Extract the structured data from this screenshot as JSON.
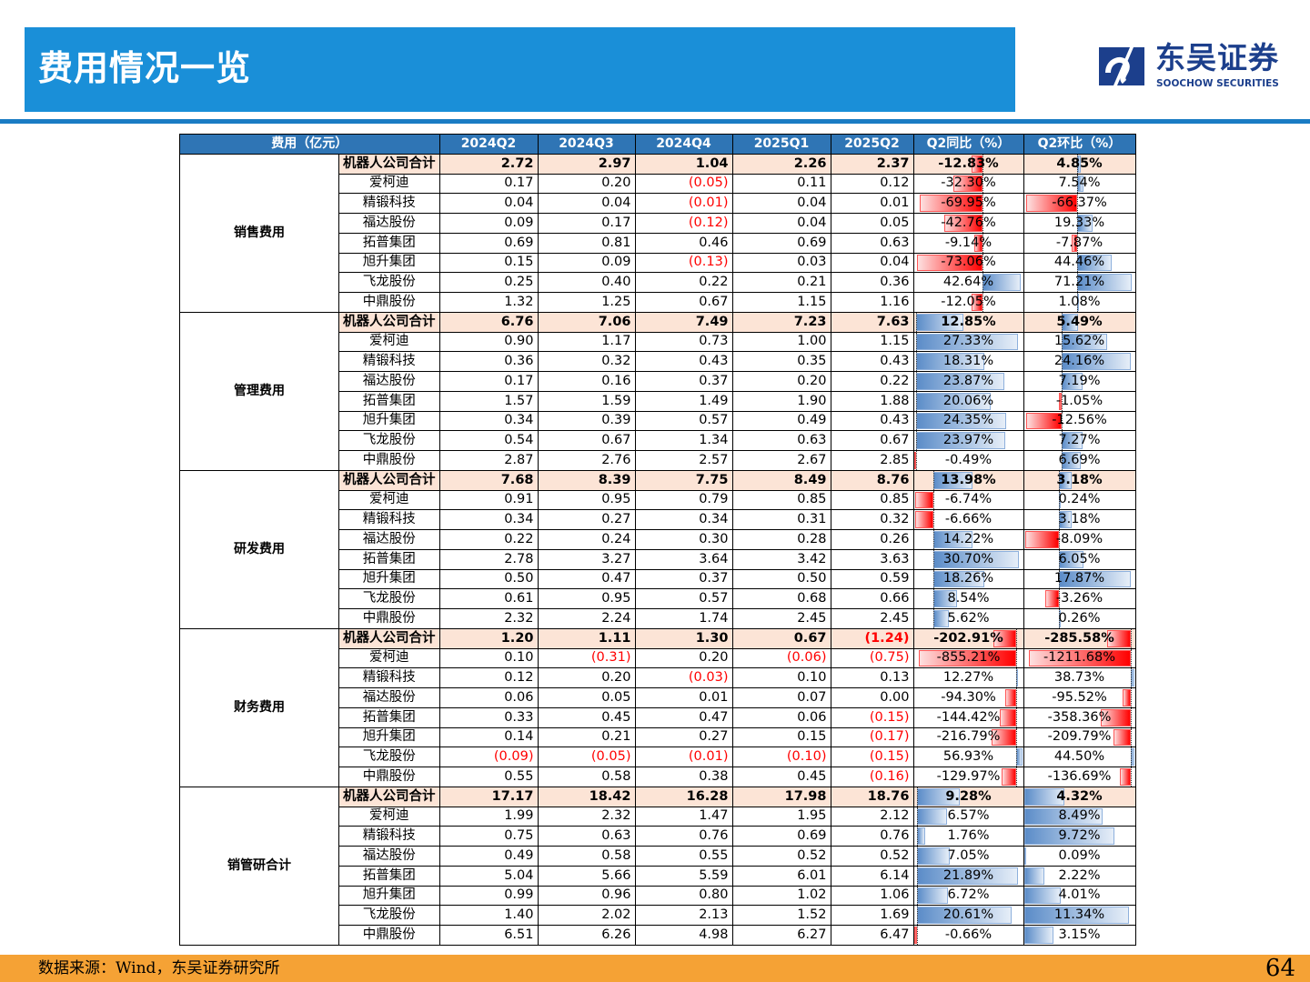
{
  "header": {
    "title": "费用情况一览"
  },
  "logo": {
    "cn": "东吴证券",
    "en": "SOOCHOW SECURITIES"
  },
  "table": {
    "columns": [
      "费用（亿元）",
      "2024Q2",
      "2024Q3",
      "2024Q4",
      "2025Q1",
      "2025Q2",
      "Q2同比（%）",
      "Q2环比（%）"
    ],
    "sections": [
      {
        "category": "销售费用",
        "rows": [
          [
            "机器人公司合计",
            "2.72",
            "2.97",
            "1.04",
            "2.26",
            "2.37",
            "-12.83%",
            "4.85%"
          ],
          [
            "爱柯迪",
            "0.17",
            "0.20",
            "(0.05)",
            "0.11",
            "0.12",
            "-32.30%",
            "7.54%"
          ],
          [
            "精锻科技",
            "0.04",
            "0.04",
            "(0.01)",
            "0.04",
            "0.01",
            "-69.95%",
            "-66.37%"
          ],
          [
            "福达股份",
            "0.09",
            "0.17",
            "(0.12)",
            "0.04",
            "0.05",
            "-42.76%",
            "19.33%"
          ],
          [
            "拓普集团",
            "0.69",
            "0.81",
            "0.46",
            "0.69",
            "0.63",
            "-9.14%",
            "-7.87%"
          ],
          [
            "旭升集团",
            "0.15",
            "0.09",
            "(0.13)",
            "0.03",
            "0.04",
            "-73.06%",
            "44.46%"
          ],
          [
            "飞龙股份",
            "0.25",
            "0.40",
            "0.22",
            "0.21",
            "0.36",
            "42.64%",
            "71.21%"
          ],
          [
            "中鼎股份",
            "1.32",
            "1.25",
            "0.67",
            "1.15",
            "1.16",
            "-12.05%",
            "1.08%"
          ]
        ]
      },
      {
        "category": "管理费用",
        "rows": [
          [
            "机器人公司合计",
            "6.76",
            "7.06",
            "7.49",
            "7.23",
            "7.63",
            "12.85%",
            "5.49%"
          ],
          [
            "爱柯迪",
            "0.90",
            "1.17",
            "0.73",
            "1.00",
            "1.15",
            "27.33%",
            "15.62%"
          ],
          [
            "精锻科技",
            "0.36",
            "0.32",
            "0.43",
            "0.35",
            "0.43",
            "18.31%",
            "24.16%"
          ],
          [
            "福达股份",
            "0.17",
            "0.16",
            "0.37",
            "0.20",
            "0.22",
            "23.87%",
            "7.19%"
          ],
          [
            "拓普集团",
            "1.57",
            "1.59",
            "1.49",
            "1.90",
            "1.88",
            "20.06%",
            "-1.05%"
          ],
          [
            "旭升集团",
            "0.34",
            "0.39",
            "0.57",
            "0.49",
            "0.43",
            "24.35%",
            "-12.56%"
          ],
          [
            "飞龙股份",
            "0.54",
            "0.67",
            "1.34",
            "0.63",
            "0.67",
            "23.97%",
            "7.27%"
          ],
          [
            "中鼎股份",
            "2.87",
            "2.76",
            "2.57",
            "2.67",
            "2.85",
            "-0.49%",
            "6.69%"
          ]
        ]
      },
      {
        "category": "研发费用",
        "rows": [
          [
            "机器人公司合计",
            "7.68",
            "8.39",
            "7.75",
            "8.49",
            "8.76",
            "13.98%",
            "3.18%"
          ],
          [
            "爱柯迪",
            "0.91",
            "0.95",
            "0.79",
            "0.85",
            "0.85",
            "-6.74%",
            "0.24%"
          ],
          [
            "精锻科技",
            "0.34",
            "0.27",
            "0.34",
            "0.31",
            "0.32",
            "-6.66%",
            "3.18%"
          ],
          [
            "福达股份",
            "0.22",
            "0.24",
            "0.30",
            "0.28",
            "0.26",
            "14.22%",
            "-8.09%"
          ],
          [
            "拓普集团",
            "2.78",
            "3.27",
            "3.64",
            "3.42",
            "3.63",
            "30.70%",
            "6.05%"
          ],
          [
            "旭升集团",
            "0.50",
            "0.47",
            "0.37",
            "0.50",
            "0.59",
            "18.26%",
            "17.87%"
          ],
          [
            "飞龙股份",
            "0.61",
            "0.95",
            "0.57",
            "0.68",
            "0.66",
            "8.54%",
            "-3.26%"
          ],
          [
            "中鼎股份",
            "2.32",
            "2.24",
            "1.74",
            "2.45",
            "2.45",
            "5.62%",
            "0.26%"
          ]
        ]
      },
      {
        "category": "财务费用",
        "rows": [
          [
            "机器人公司合计",
            "1.20",
            "1.11",
            "1.30",
            "0.67",
            "(1.24)",
            "-202.91%",
            "-285.58%"
          ],
          [
            "爱柯迪",
            "0.10",
            "(0.31)",
            "0.20",
            "(0.06)",
            "(0.75)",
            "-855.21%",
            "-1211.68%"
          ],
          [
            "精锻科技",
            "0.12",
            "0.20",
            "(0.03)",
            "0.10",
            "0.13",
            "12.27%",
            "38.73%"
          ],
          [
            "福达股份",
            "0.06",
            "0.05",
            "0.01",
            "0.07",
            "0.00",
            "-94.30%",
            "-95.52%"
          ],
          [
            "拓普集团",
            "0.33",
            "0.45",
            "0.47",
            "0.06",
            "(0.15)",
            "-144.42%",
            "-358.36%"
          ],
          [
            "旭升集团",
            "0.14",
            "0.21",
            "0.27",
            "0.15",
            "(0.17)",
            "-216.79%",
            "-209.79%"
          ],
          [
            "飞龙股份",
            "(0.09)",
            "(0.05)",
            "(0.01)",
            "(0.10)",
            "(0.15)",
            "56.93%",
            "44.50%"
          ],
          [
            "中鼎股份",
            "0.55",
            "0.58",
            "0.38",
            "0.45",
            "(0.16)",
            "-129.97%",
            "-136.69%"
          ]
        ]
      },
      {
        "category": "销管研合计",
        "rows": [
          [
            "机器人公司合计",
            "17.17",
            "18.42",
            "16.28",
            "17.98",
            "18.76",
            "9.28%",
            "4.32%"
          ],
          [
            "爱柯迪",
            "1.99",
            "2.32",
            "1.47",
            "1.95",
            "2.12",
            "6.57%",
            "8.49%"
          ],
          [
            "精锻科技",
            "0.75",
            "0.63",
            "0.76",
            "0.69",
            "0.76",
            "1.76%",
            "9.72%"
          ],
          [
            "福达股份",
            "0.49",
            "0.58",
            "0.55",
            "0.52",
            "0.52",
            "7.05%",
            "0.09%"
          ],
          [
            "拓普集团",
            "5.04",
            "5.66",
            "5.59",
            "6.01",
            "6.14",
            "21.89%",
            "2.22%"
          ],
          [
            "旭升集团",
            "0.99",
            "0.96",
            "0.80",
            "1.02",
            "1.06",
            "6.72%",
            "4.01%"
          ],
          [
            "飞龙股份",
            "1.40",
            "2.02",
            "2.13",
            "1.52",
            "1.69",
            "20.61%",
            "11.34%"
          ],
          [
            "中鼎股份",
            "6.51",
            "6.26",
            "4.98",
            "6.27",
            "6.47",
            "-0.66%",
            "3.15%"
          ]
        ]
      }
    ]
  },
  "footer": {
    "source": "数据来源：Wind，东吴证券研究所",
    "page": "64"
  }
}
